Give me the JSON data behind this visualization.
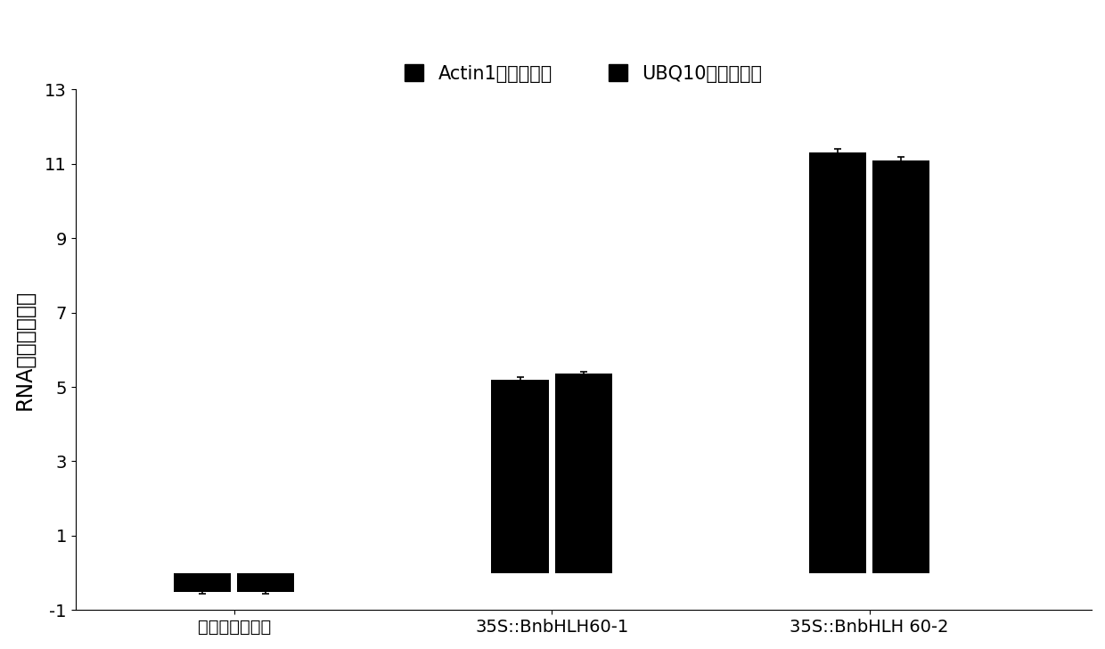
{
  "categories": [
    "野生型（对照）",
    "35S::BnbHLH60-1",
    "35S::BnbHLH 60-2"
  ],
  "series": [
    {
      "name": "Actin1为内参基因",
      "values": [
        -0.52,
        5.2,
        11.3
      ],
      "errors": [
        0.04,
        0.06,
        0.1
      ],
      "color": "#000000"
    },
    {
      "name": "UBQ10为内参基因",
      "values": [
        -0.52,
        5.35,
        11.1
      ],
      "errors": [
        0.04,
        0.07,
        0.08
      ],
      "color": "#000000"
    }
  ],
  "ylabel": "RNA相对表达水平",
  "ylim": [
    -1,
    13
  ],
  "yticks": [
    -1,
    1,
    3,
    5,
    7,
    9,
    11,
    13
  ],
  "bar_width": 0.18,
  "group_positions": [
    0.3,
    1.3,
    2.3
  ],
  "bar_gap": 0.02,
  "background_color": "#ffffff",
  "legend_fontsize": 15,
  "ylabel_fontsize": 17,
  "tick_fontsize": 14,
  "capsize": 3,
  "xlim": [
    -0.2,
    3.0
  ]
}
